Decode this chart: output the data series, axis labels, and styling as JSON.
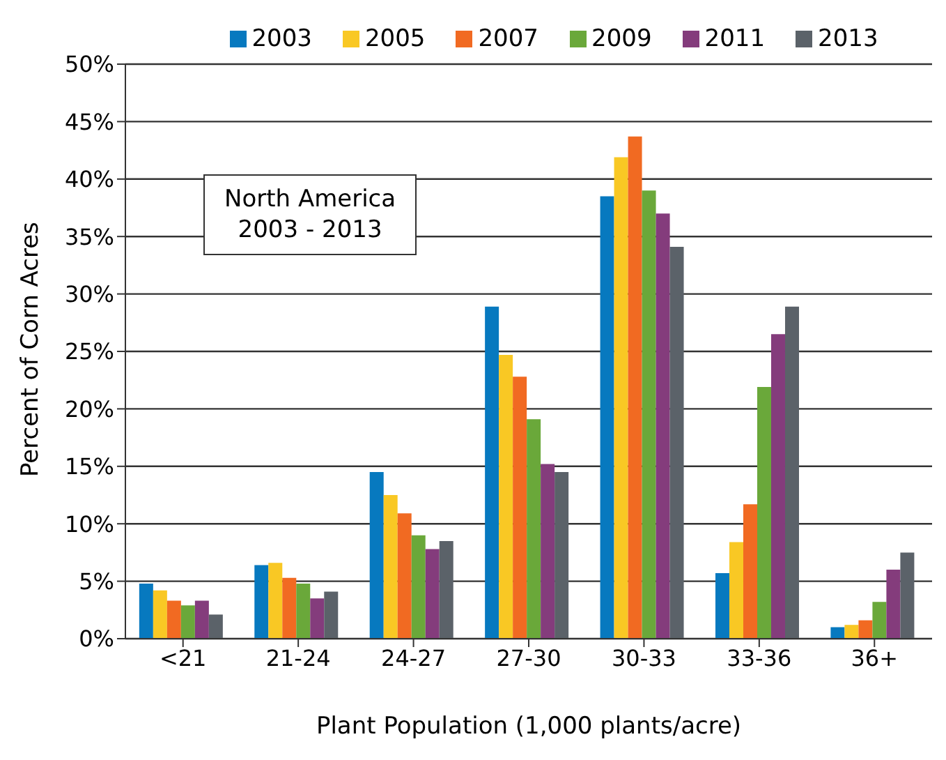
{
  "chart_data": {
    "type": "bar",
    "xlabel": "Plant Population (1,000 plants/acre)",
    "ylabel": "Percent of Corn Acres",
    "annotations": [
      "North America\n2003 - 2013"
    ],
    "categories": [
      "<21",
      "21-24",
      "24-27",
      "27-30",
      "30-33",
      "33-36",
      "36+"
    ],
    "series": [
      {
        "name": "2003",
        "color": "#0779bf",
        "values": [
          4.8,
          6.4,
          14.5,
          28.9,
          38.5,
          5.7,
          1.0
        ]
      },
      {
        "name": "2005",
        "color": "#f9c824",
        "values": [
          4.2,
          6.6,
          12.5,
          24.7,
          41.9,
          8.4,
          1.2
        ]
      },
      {
        "name": "2007",
        "color": "#f16a22",
        "values": [
          3.3,
          5.3,
          10.9,
          22.8,
          43.7,
          11.7,
          1.6
        ]
      },
      {
        "name": "2009",
        "color": "#6aa83a",
        "values": [
          2.9,
          4.8,
          9.0,
          19.1,
          39.0,
          21.9,
          3.2
        ]
      },
      {
        "name": "2011",
        "color": "#843c7c",
        "values": [
          3.3,
          3.5,
          7.8,
          15.2,
          37.0,
          26.5,
          6.0
        ]
      },
      {
        "name": "2013",
        "color": "#5b6269",
        "values": [
          2.1,
          4.1,
          8.5,
          14.5,
          34.1,
          28.9,
          7.5
        ]
      }
    ],
    "ylim": [
      0,
      50
    ],
    "yticks": [
      {
        "value": 0,
        "label": "0%"
      },
      {
        "value": 5,
        "label": "5%"
      },
      {
        "value": 10,
        "label": "10%"
      },
      {
        "value": 15,
        "label": "15%"
      },
      {
        "value": 20,
        "label": "20%"
      },
      {
        "value": 25,
        "label": "25%"
      },
      {
        "value": 30,
        "label": "30%"
      },
      {
        "value": 35,
        "label": "35%"
      },
      {
        "value": 40,
        "label": "40%"
      },
      {
        "value": 45,
        "label": "45%"
      },
      {
        "value": 50,
        "label": "50%"
      }
    ],
    "grid": "y",
    "legend": "top"
  }
}
